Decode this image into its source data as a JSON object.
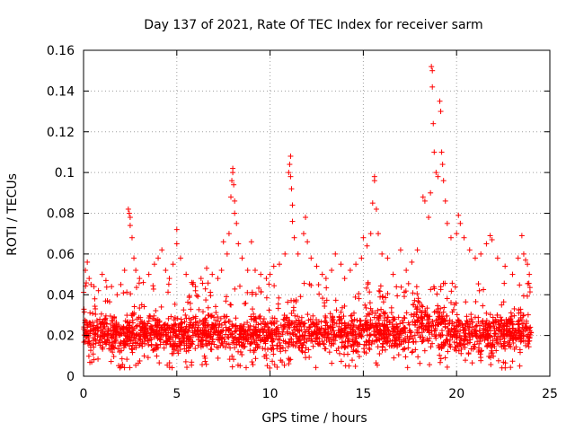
{
  "chart_data": {
    "type": "scatter",
    "title": "Day 137 of 2021, Rate Of TEC Index for receiver sarm",
    "xlabel": "GPS time / hours",
    "ylabel": "ROTI / TECUs",
    "xlim": [
      0,
      25
    ],
    "ylim": [
      0,
      0.16
    ],
    "xticks": [
      0,
      5,
      10,
      15,
      20,
      25
    ],
    "xtick_labels": [
      "0",
      "5",
      "10",
      "15",
      "20",
      "25"
    ],
    "yticks": [
      0,
      0.02,
      0.04,
      0.06,
      0.08,
      0.1,
      0.12,
      0.14,
      0.16
    ],
    "ytick_labels": [
      "0",
      "0.02",
      "0.04",
      "0.06",
      "0.08",
      "0.1",
      "0.12",
      "0.14",
      "0.16"
    ],
    "grid": true,
    "marker": "+",
    "color": "#ff0000",
    "x_data_range": [
      0,
      24
    ],
    "series": [
      {
        "points": [
          [
            0.1,
            0.052
          ],
          [
            0.2,
            0.056
          ],
          [
            0.3,
            0.048
          ],
          [
            0.4,
            0.045
          ],
          [
            0.6,
            0.038
          ],
          [
            0.8,
            0.042
          ],
          [
            1.0,
            0.05
          ],
          [
            1.2,
            0.047
          ],
          [
            1.5,
            0.044
          ],
          [
            1.8,
            0.04
          ],
          [
            2.0,
            0.045
          ],
          [
            2.2,
            0.052
          ],
          [
            2.4,
            0.082
          ],
          [
            2.45,
            0.08
          ],
          [
            2.5,
            0.078
          ],
          [
            2.5,
            0.074
          ],
          [
            2.6,
            0.068
          ],
          [
            2.7,
            0.058
          ],
          [
            2.8,
            0.052
          ],
          [
            3.0,
            0.048
          ],
          [
            3.2,
            0.046
          ],
          [
            3.5,
            0.05
          ],
          [
            3.8,
            0.055
          ],
          [
            4.0,
            0.058
          ],
          [
            4.2,
            0.062
          ],
          [
            4.4,
            0.052
          ],
          [
            4.6,
            0.048
          ],
          [
            4.8,
            0.055
          ],
          [
            5.0,
            0.072
          ],
          [
            5.0,
            0.065
          ],
          [
            5.2,
            0.058
          ],
          [
            5.5,
            0.05
          ],
          [
            5.8,
            0.046
          ],
          [
            6.0,
            0.044
          ],
          [
            6.3,
            0.048
          ],
          [
            6.6,
            0.053
          ],
          [
            6.9,
            0.05
          ],
          [
            7.2,
            0.048
          ],
          [
            7.4,
            0.052
          ],
          [
            7.5,
            0.066
          ],
          [
            7.7,
            0.06
          ],
          [
            7.8,
            0.07
          ],
          [
            7.9,
            0.088
          ],
          [
            7.95,
            0.096
          ],
          [
            8.0,
            0.102
          ],
          [
            8.0,
            0.1
          ],
          [
            8.05,
            0.094
          ],
          [
            8.1,
            0.086
          ],
          [
            8.1,
            0.08
          ],
          [
            8.2,
            0.075
          ],
          [
            8.3,
            0.065
          ],
          [
            8.5,
            0.058
          ],
          [
            8.8,
            0.052
          ],
          [
            9.0,
            0.066
          ],
          [
            9.2,
            0.052
          ],
          [
            9.5,
            0.05
          ],
          [
            9.8,
            0.048
          ],
          [
            10.0,
            0.05
          ],
          [
            10.2,
            0.054
          ],
          [
            10.5,
            0.055
          ],
          [
            10.8,
            0.06
          ],
          [
            11.0,
            0.1
          ],
          [
            11.05,
            0.104
          ],
          [
            11.1,
            0.108
          ],
          [
            11.1,
            0.098
          ],
          [
            11.15,
            0.092
          ],
          [
            11.2,
            0.084
          ],
          [
            11.2,
            0.076
          ],
          [
            11.3,
            0.068
          ],
          [
            11.5,
            0.06
          ],
          [
            11.8,
            0.07
          ],
          [
            11.9,
            0.078
          ],
          [
            12.0,
            0.066
          ],
          [
            12.2,
            0.058
          ],
          [
            12.5,
            0.054
          ],
          [
            12.8,
            0.05
          ],
          [
            13.0,
            0.048
          ],
          [
            13.3,
            0.052
          ],
          [
            13.5,
            0.06
          ],
          [
            13.8,
            0.055
          ],
          [
            14.0,
            0.048
          ],
          [
            14.3,
            0.052
          ],
          [
            14.6,
            0.055
          ],
          [
            14.9,
            0.058
          ],
          [
            15.0,
            0.068
          ],
          [
            15.2,
            0.064
          ],
          [
            15.4,
            0.07
          ],
          [
            15.5,
            0.085
          ],
          [
            15.6,
            0.098
          ],
          [
            15.6,
            0.096
          ],
          [
            15.7,
            0.082
          ],
          [
            15.8,
            0.07
          ],
          [
            16.0,
            0.06
          ],
          [
            16.3,
            0.058
          ],
          [
            16.6,
            0.05
          ],
          [
            17.0,
            0.062
          ],
          [
            17.3,
            0.052
          ],
          [
            17.6,
            0.056
          ],
          [
            17.9,
            0.062
          ],
          [
            18.2,
            0.088
          ],
          [
            18.3,
            0.086
          ],
          [
            18.5,
            0.078
          ],
          [
            18.6,
            0.09
          ],
          [
            18.65,
            0.152
          ],
          [
            18.7,
            0.15
          ],
          [
            18.7,
            0.142
          ],
          [
            18.75,
            0.124
          ],
          [
            18.8,
            0.11
          ],
          [
            18.9,
            0.1
          ],
          [
            19.0,
            0.098
          ],
          [
            19.1,
            0.135
          ],
          [
            19.15,
            0.13
          ],
          [
            19.2,
            0.11
          ],
          [
            19.25,
            0.104
          ],
          [
            19.3,
            0.096
          ],
          [
            19.4,
            0.086
          ],
          [
            19.5,
            0.075
          ],
          [
            19.7,
            0.068
          ],
          [
            20.0,
            0.07
          ],
          [
            20.1,
            0.079
          ],
          [
            20.2,
            0.075
          ],
          [
            20.4,
            0.068
          ],
          [
            20.7,
            0.062
          ],
          [
            21.0,
            0.058
          ],
          [
            21.3,
            0.06
          ],
          [
            21.6,
            0.065
          ],
          [
            21.8,
            0.069
          ],
          [
            21.9,
            0.067
          ],
          [
            22.2,
            0.058
          ],
          [
            22.6,
            0.054
          ],
          [
            23.0,
            0.05
          ],
          [
            23.3,
            0.058
          ],
          [
            23.5,
            0.069
          ],
          [
            23.6,
            0.06
          ],
          [
            23.7,
            0.057
          ],
          [
            23.8,
            0.055
          ],
          [
            23.9,
            0.05
          ]
        ],
        "baseline": {
          "comment_free": true,
          "count": 2400,
          "min": 0.004,
          "typical_low": 0.01,
          "typical_high": 0.032,
          "max": 0.046,
          "elevated_segments": [
            [
              0.0,
              0.5,
              0.035
            ],
            [
              7.7,
              8.3,
              0.034
            ],
            [
              10.6,
              11.4,
              0.036
            ],
            [
              15.0,
              16.0,
              0.036
            ],
            [
              17.6,
              19.6,
              0.04
            ],
            [
              23.2,
              24.0,
              0.036
            ]
          ]
        }
      }
    ]
  }
}
